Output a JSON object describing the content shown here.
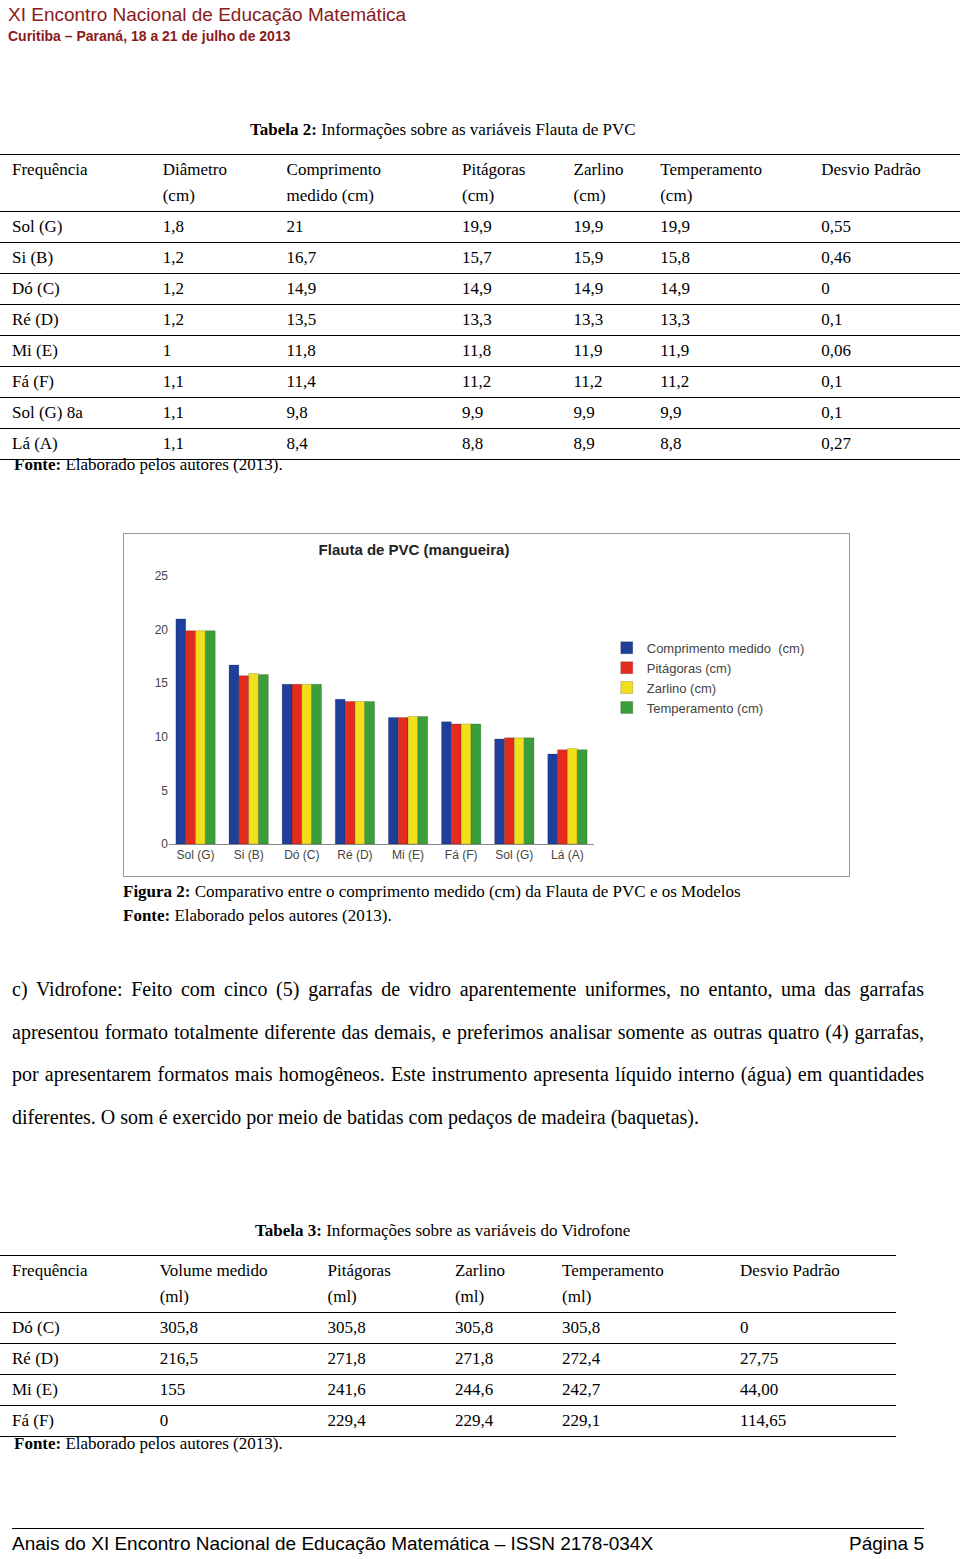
{
  "header": {
    "title": "XI Encontro Nacional de Educação Matemática",
    "subtitle": "Curitiba – Paraná, 18 a 21 de julho de 2013"
  },
  "table2": {
    "label": "Tabela 2:",
    "title": "Informações sobre as variáveis Flauta de PVC",
    "header": [
      [
        "Frequência"
      ],
      [
        "Diâmetro",
        "(cm)"
      ],
      [
        "Comprimento",
        "medido  (cm)"
      ],
      [
        "Pitágoras",
        "(cm)"
      ],
      [
        "Zarlino",
        "(cm)"
      ],
      [
        "Temperamento",
        "(cm)"
      ],
      [
        "Desvio Padrão"
      ]
    ],
    "rows": [
      [
        "Sol (G)",
        "1,8",
        "21",
        "19,9",
        "19,9",
        "19,9",
        "0,55"
      ],
      [
        "Si (B)",
        "1,2",
        "16,7",
        "15,7",
        "15,9",
        "15,8",
        "0,46"
      ],
      [
        "Dó (C)",
        "1,2",
        "14,9",
        "14,9",
        "14,9",
        "14,9",
        "0"
      ],
      [
        "Ré (D)",
        "1,2",
        "13,5",
        "13,3",
        "13,3",
        "13,3",
        "0,1"
      ],
      [
        "Mi (E)",
        "1",
        "11,8",
        "11,8",
        "11,9",
        "11,9",
        "0,06"
      ],
      [
        "Fá (F)",
        "1,1",
        "11,4",
        "11,2",
        "11,2",
        "11,2",
        "0,1"
      ],
      [
        "Sol (G) 8a",
        "1,1",
        "9,8",
        "9,9",
        "9,9",
        "9,9",
        "0,1"
      ],
      [
        "Lá (A)",
        "1,1",
        "8,4",
        "8,8",
        "8,9",
        "8,8",
        "0,27"
      ]
    ],
    "source_label": "Fonte:",
    "source": "Elaborado pelos autores (2013)."
  },
  "chart_data": {
    "type": "bar",
    "title": "Flauta de PVC (mangueira)",
    "categories": [
      "Sol (G)",
      "Si (B)",
      "Dó (C)",
      "Ré (D)",
      "Mi (E)",
      "Fá (F)",
      "Sol (G)",
      "Lá (A)"
    ],
    "series": [
      {
        "name": "Comprimento medido  (cm)",
        "color": "#1f3f9a",
        "values": [
          21,
          16.7,
          14.9,
          13.5,
          11.8,
          11.4,
          9.8,
          8.4
        ]
      },
      {
        "name": "Pitágoras (cm)",
        "color": "#e32b1f",
        "values": [
          19.9,
          15.7,
          14.9,
          13.3,
          11.8,
          11.2,
          9.9,
          8.8
        ]
      },
      {
        "name": "Zarlino (cm)",
        "color": "#f2df1c",
        "values": [
          19.9,
          15.9,
          14.9,
          13.3,
          11.9,
          11.2,
          9.9,
          8.9
        ]
      },
      {
        "name": "Temperamento (cm)",
        "color": "#3a9e3a",
        "values": [
          19.9,
          15.8,
          14.9,
          13.3,
          11.9,
          11.2,
          9.9,
          8.8
        ]
      }
    ],
    "ylim": [
      0,
      25
    ],
    "yticks": [
      0,
      5,
      10,
      15,
      20,
      25
    ],
    "grid": false,
    "legend": "right"
  },
  "figure2": {
    "label": "Figura 2:",
    "caption": "Comparativo entre o comprimento medido (cm) da Flauta de PVC e os Modelos",
    "source_label": "Fonte:",
    "source": "Elaborado pelos autores (2013)."
  },
  "paragraph": "c) Vidrofone: Feito com cinco (5) garrafas de vidro aparentemente uniformes, no entanto, uma das garrafas apresentou formato totalmente diferente das demais, e preferimos analisar somente as outras quatro (4) garrafas, por apresentarem formatos mais homogêneos. Este instrumento apresenta líquido interno (água) em quantidades diferentes. O som é exercido por meio de batidas com pedaços de madeira (baquetas).",
  "table3": {
    "label": "Tabela 3:",
    "title": "Informações sobre as variáveis do Vidrofone",
    "header": [
      [
        "Frequência"
      ],
      [
        "Volume   medido",
        "(ml)"
      ],
      [
        "Pitágoras",
        "(ml)"
      ],
      [
        "Zarlino",
        "(ml)"
      ],
      [
        "Temperamento",
        "(ml)"
      ],
      [
        "Desvio Padrão"
      ]
    ],
    "rows": [
      [
        "Dó (C)",
        "305,8",
        "305,8",
        "305,8",
        "305,8",
        "0"
      ],
      [
        "Ré (D)",
        "216,5",
        "271,8",
        "271,8",
        "272,4",
        "27,75"
      ],
      [
        "Mi (E)",
        "155",
        "241,6",
        "244,6",
        "242,7",
        "44,00"
      ],
      [
        "Fá (F)",
        "0",
        "229,4",
        "229,4",
        "229,1",
        "114,65"
      ]
    ],
    "source_label": "Fonte:",
    "source": "Elaborado pelos autores (2013)."
  },
  "footer": {
    "left": "Anais do XI Encontro Nacional de Educação Matemática – ISSN 2178-034X",
    "right": "Página 5"
  }
}
